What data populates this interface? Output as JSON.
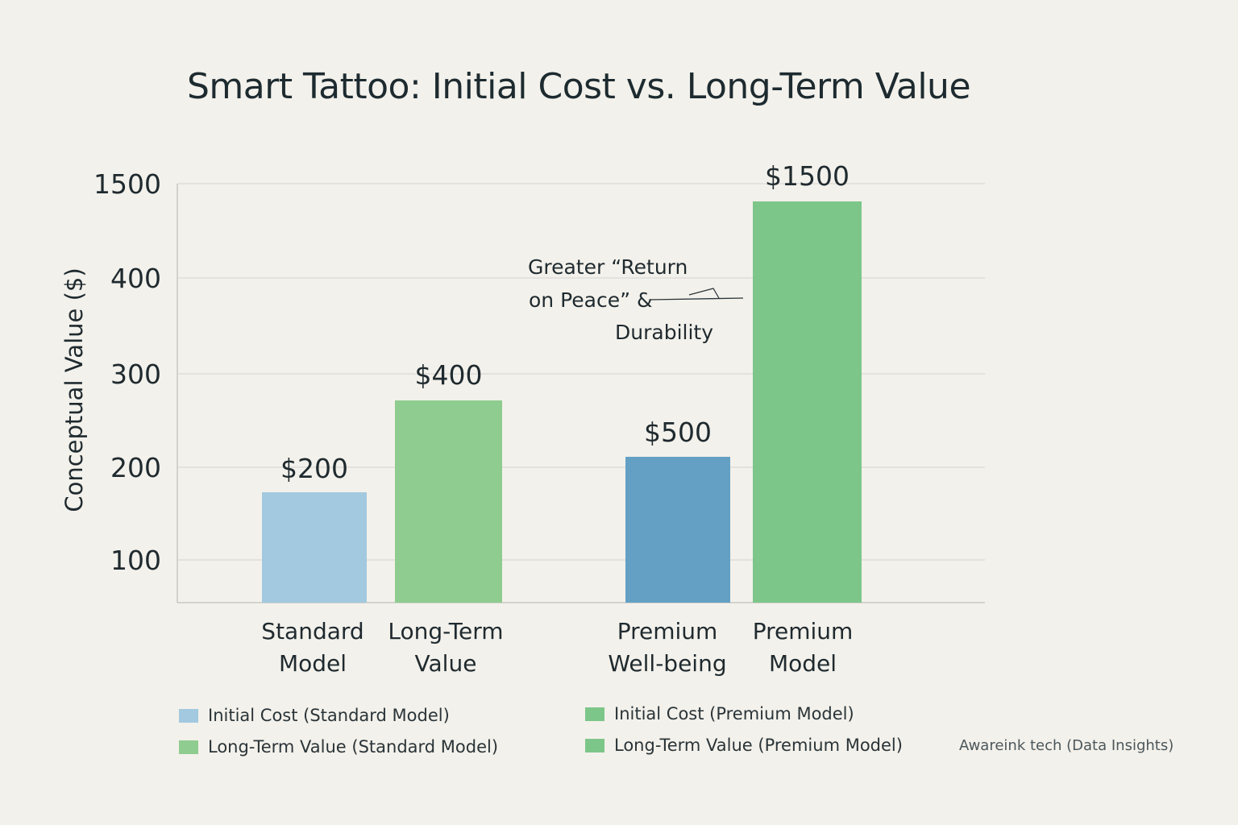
{
  "title": "Smart Tattoo: Initial Cost vs. Long-Term Value",
  "colors": {
    "light_blue": "#a2c9df",
    "green": "#8fcc8f",
    "dark_blue": "#64a0c4",
    "bright_green": "#7dc68a",
    "gridline": "#d9d9d6",
    "axis": "#c8c8c4"
  },
  "chart_data": {
    "type": "bar",
    "ylabel": "Conceptual Value ($)",
    "y_ticks": [
      "100",
      "200",
      "300",
      "400",
      "1500"
    ],
    "categories": [
      [
        "Standard",
        "Model"
      ],
      [
        "Long-Term",
        "Value"
      ],
      [
        "Premium",
        "Well-being"
      ],
      [
        "Premium",
        "Model"
      ]
    ],
    "values": [
      200,
      400,
      500,
      1500
    ],
    "data_labels": [
      "$200",
      "$400",
      "$500",
      "$1500"
    ],
    "bar_colors": [
      "#a2c9df",
      "#8fcc8f",
      "#64a0c4",
      "#7dc68a"
    ],
    "grid": true,
    "annotation": [
      "Greater “Return",
      "on Peace” &",
      "Durability"
    ],
    "legend": [
      {
        "label": "Initial Cost (Standard Model)",
        "color": "#a2c9df"
      },
      {
        "label": "Long-Term Value (Standard Model)",
        "color": "#8fcc8f"
      },
      {
        "label": "Initial Cost (Premium Model)",
        "color": "#7dc68a"
      },
      {
        "label": "Long-Term Value (Premium Model)",
        "color": "#7dc68a"
      }
    ],
    "legend_position": "bottom"
  },
  "credit": "Awareink tech (Data Insights)"
}
